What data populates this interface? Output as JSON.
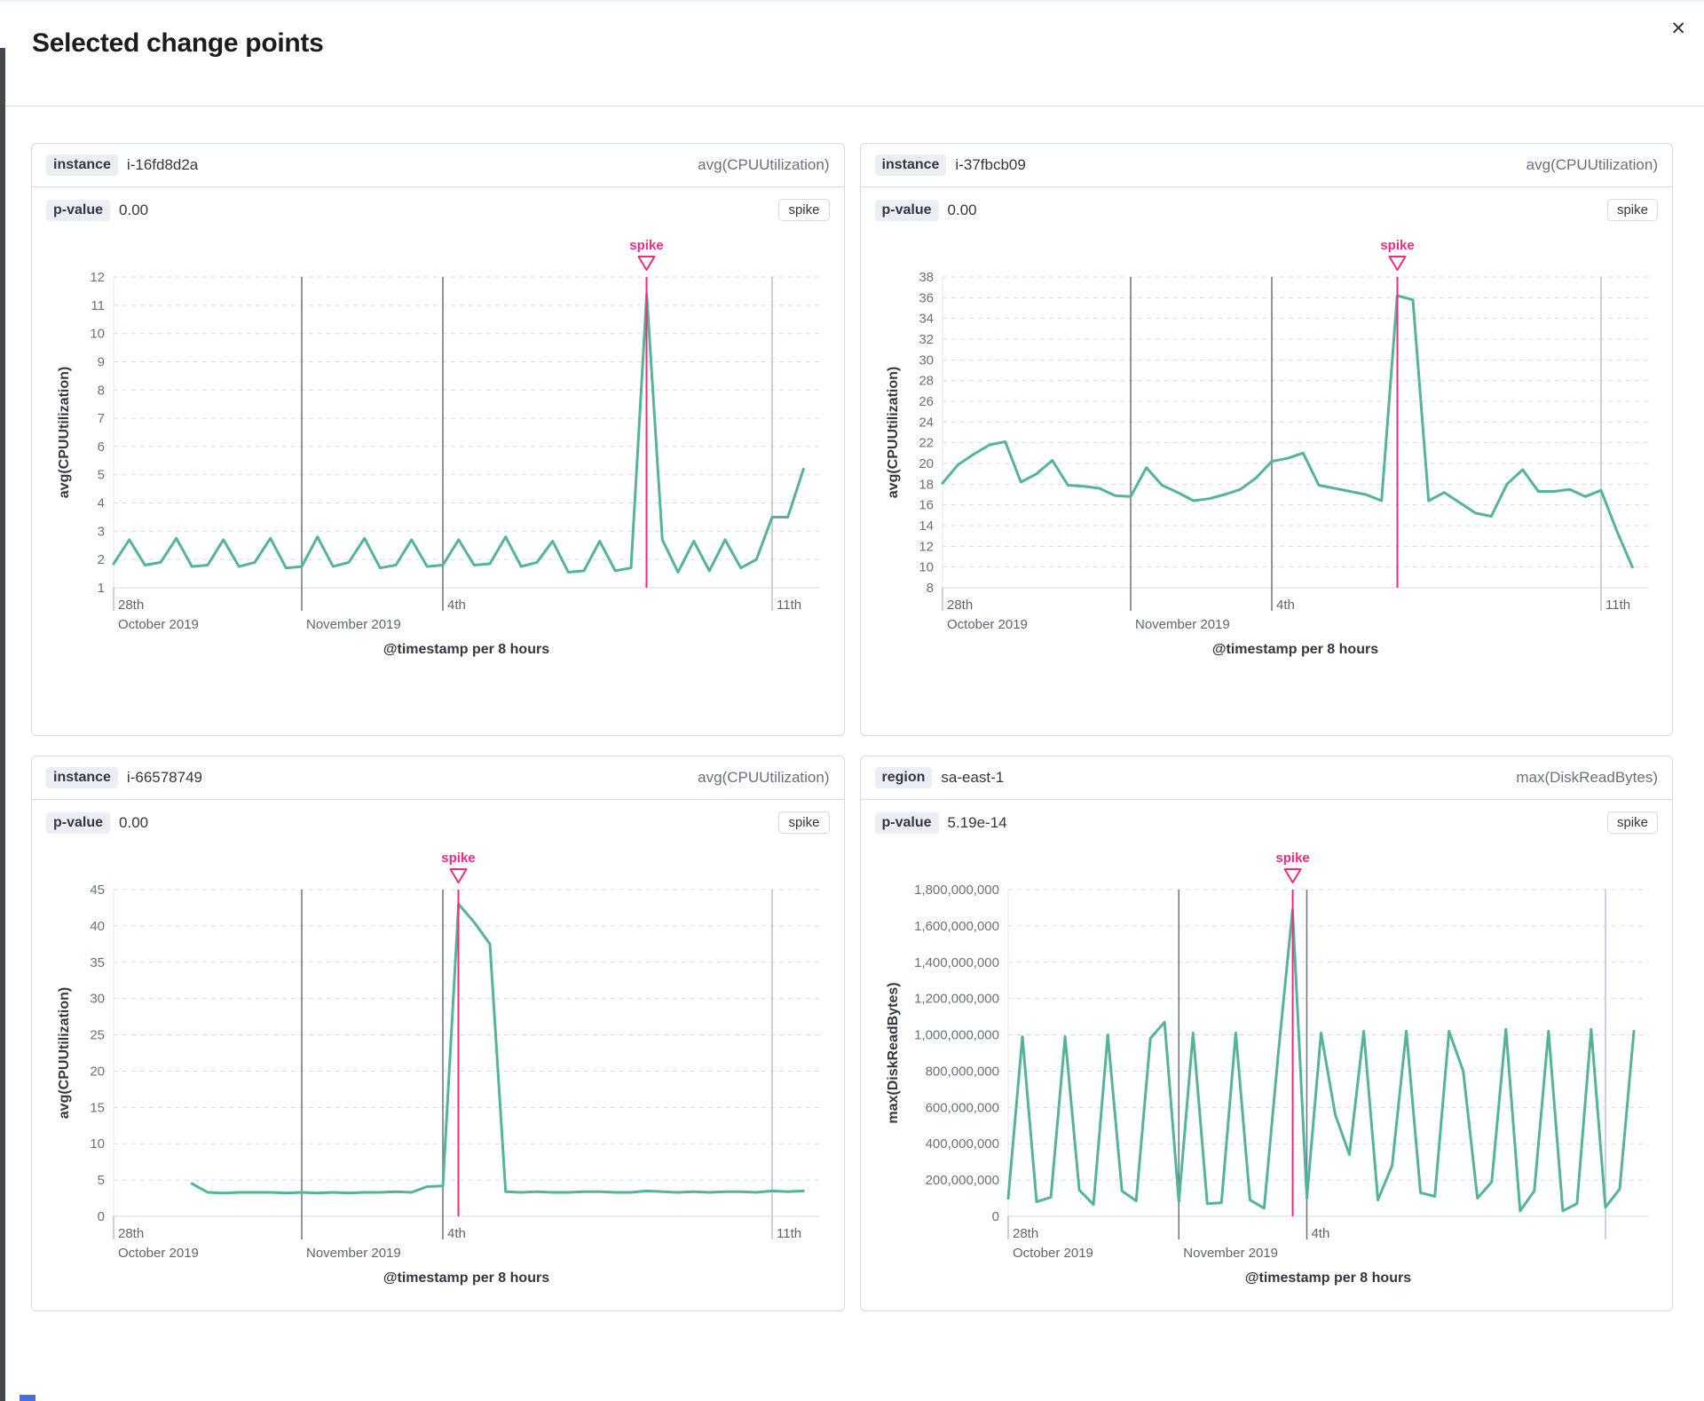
{
  "modal": {
    "title": "Selected change points",
    "close_icon": "✕"
  },
  "colors": {
    "series_line": "#54b399",
    "annotation": "#ee2c7f",
    "grid_dashed": "#d7dbe5",
    "grid_dark": "#6b7280",
    "grid_light": "#cbd1db",
    "axis_line": "#e3e7ee",
    "tick_text": "#69707d",
    "date_text": "#5d6570",
    "axis_title_text": "#343741"
  },
  "panels": [
    {
      "key_label": "instance",
      "key_value": "i-16fd8d2a",
      "metric": "avg(CPUUtilization)",
      "p_value_label": "p-value",
      "p_value": "0.00",
      "change_type": "spike",
      "chart_data": {
        "type": "line",
        "title": "",
        "xlabel": "@timestamp per 8 hours",
        "ylabel": "avg(CPUUtilization)",
        "ylim": [
          1,
          12
        ],
        "ystep": 1,
        "y_format": "plain",
        "x_axis_note": "time buckets of 8h from 2019-10-28 00:00 to 2019-11-12 00:00, day index 0-15",
        "x_ticks": [
          {
            "day": 0,
            "label": "28th",
            "sub": "October 2019",
            "line": "tick"
          },
          {
            "day": 4,
            "label": "",
            "sub": "November 2019",
            "line": "dark"
          },
          {
            "day": 7,
            "label": "4th",
            "sub": "",
            "line": "dark"
          },
          {
            "day": 14,
            "label": "11th",
            "sub": "",
            "line": "light"
          }
        ],
        "annotation": {
          "label": "spike",
          "day": 11.33
        },
        "values": [
          1.85,
          2.7,
          1.8,
          1.9,
          2.75,
          1.75,
          1.8,
          2.7,
          1.75,
          1.9,
          2.75,
          1.7,
          1.75,
          2.8,
          1.75,
          1.9,
          2.75,
          1.7,
          1.8,
          2.7,
          1.75,
          1.8,
          2.7,
          1.8,
          1.85,
          2.8,
          1.75,
          1.9,
          2.65,
          1.55,
          1.6,
          2.65,
          1.6,
          1.7,
          11.4,
          2.7,
          1.55,
          2.65,
          1.6,
          2.7,
          1.7,
          2.0,
          3.5,
          3.5,
          5.2
        ]
      }
    },
    {
      "key_label": "instance",
      "key_value": "i-37fbcb09",
      "metric": "avg(CPUUtilization)",
      "p_value_label": "p-value",
      "p_value": "0.00",
      "change_type": "spike",
      "chart_data": {
        "type": "line",
        "title": "",
        "xlabel": "@timestamp per 8 hours",
        "ylabel": "avg(CPUUtilization)",
        "ylim": [
          8,
          38
        ],
        "ystep": 2,
        "y_format": "plain",
        "x_axis_note": "time buckets of 8h from 2019-10-28 00:00 to 2019-11-12 00:00, day index 0-15",
        "x_ticks": [
          {
            "day": 0,
            "label": "28th",
            "sub": "October 2019",
            "line": "tick"
          },
          {
            "day": 4,
            "label": "",
            "sub": "November 2019",
            "line": "dark"
          },
          {
            "day": 7,
            "label": "4th",
            "sub": "",
            "line": "dark"
          },
          {
            "day": 14,
            "label": "11th",
            "sub": "",
            "line": "light"
          }
        ],
        "annotation": {
          "label": "spike",
          "day": 9.67
        },
        "values": [
          18.1,
          19.9,
          20.9,
          21.8,
          22.1,
          18.2,
          19.0,
          20.3,
          17.9,
          17.8,
          17.6,
          16.9,
          16.8,
          19.6,
          17.9,
          17.2,
          16.4,
          16.6,
          17.0,
          17.5,
          18.6,
          20.2,
          20.5,
          21.0,
          17.9,
          17.6,
          17.3,
          17.0,
          16.4,
          36.2,
          35.8,
          16.4,
          17.2,
          16.2,
          15.2,
          14.9,
          18.0,
          19.4,
          17.3,
          17.3,
          17.5,
          16.8,
          17.4,
          13.5,
          10.0
        ]
      }
    },
    {
      "key_label": "instance",
      "key_value": "i-66578749",
      "metric": "avg(CPUUtilization)",
      "p_value_label": "p-value",
      "p_value": "0.00",
      "change_type": "spike",
      "chart_data": {
        "type": "line",
        "title": "",
        "xlabel": "@timestamp per 8 hours",
        "ylabel": "avg(CPUUtilization)",
        "ylim": [
          0,
          45
        ],
        "ystep": 5,
        "y_format": "plain",
        "x_axis_note": "time buckets of 8h from 2019-10-28 00:00 to 2019-11-12 00:00, day index 0-15; series starts ~Oct 29 16:00",
        "x_ticks": [
          {
            "day": 0,
            "label": "28th",
            "sub": "October 2019",
            "line": "tick"
          },
          {
            "day": 4,
            "label": "",
            "sub": "November 2019",
            "line": "dark"
          },
          {
            "day": 7,
            "label": "4th",
            "sub": "",
            "line": "dark"
          },
          {
            "day": 14,
            "label": "11th",
            "sub": "",
            "line": "light"
          }
        ],
        "annotation": {
          "label": "spike",
          "day": 7.33
        },
        "values": [
          null,
          null,
          null,
          null,
          null,
          4.5,
          3.3,
          3.2,
          3.3,
          3.3,
          3.3,
          3.2,
          3.3,
          3.2,
          3.3,
          3.2,
          3.3,
          3.3,
          3.4,
          3.3,
          4.1,
          4.2,
          43.0,
          40.5,
          37.5,
          3.4,
          3.3,
          3.4,
          3.3,
          3.3,
          3.4,
          3.4,
          3.3,
          3.3,
          3.5,
          3.4,
          3.3,
          3.4,
          3.3,
          3.4,
          3.4,
          3.3,
          3.5,
          3.4,
          3.5
        ]
      }
    },
    {
      "key_label": "region",
      "key_value": "sa-east-1",
      "metric": "max(DiskReadBytes)",
      "p_value_label": "p-value",
      "p_value": "5.19e-14",
      "change_type": "spike",
      "chart_data": {
        "type": "line",
        "title": "",
        "xlabel": "@timestamp per 8 hours",
        "ylabel": "max(DiskReadBytes)",
        "ylim": [
          0,
          1800000000
        ],
        "ystep": 200000000,
        "y_format": "comma",
        "x_axis_note": "time buckets of 8h from 2019-10-28 00:00 to 2019-11-12 00:00, day index 0-15",
        "x_ticks": [
          {
            "day": 0,
            "label": "28th",
            "sub": "October 2019",
            "line": "tick"
          },
          {
            "day": 4,
            "label": "",
            "sub": "November 2019",
            "line": "dark"
          },
          {
            "day": 7,
            "label": "4th",
            "sub": "",
            "line": "dark"
          },
          {
            "day": 14,
            "label": "",
            "sub": "",
            "line": "light"
          }
        ],
        "annotation": {
          "label": "spike",
          "day": 6.67
        },
        "values": [
          100000000,
          990000000,
          80000000,
          105000000,
          990000000,
          145000000,
          65000000,
          1000000000,
          140000000,
          85000000,
          980000000,
          1070000000,
          80000000,
          1010000000,
          70000000,
          75000000,
          1010000000,
          90000000,
          45000000,
          900000000,
          1690000000,
          100000000,
          1010000000,
          560000000,
          340000000,
          1020000000,
          90000000,
          280000000,
          1020000000,
          130000000,
          110000000,
          1020000000,
          800000000,
          100000000,
          190000000,
          1030000000,
          30000000,
          140000000,
          1020000000,
          30000000,
          70000000,
          1030000000,
          50000000,
          150000000,
          1020000000
        ]
      }
    }
  ]
}
